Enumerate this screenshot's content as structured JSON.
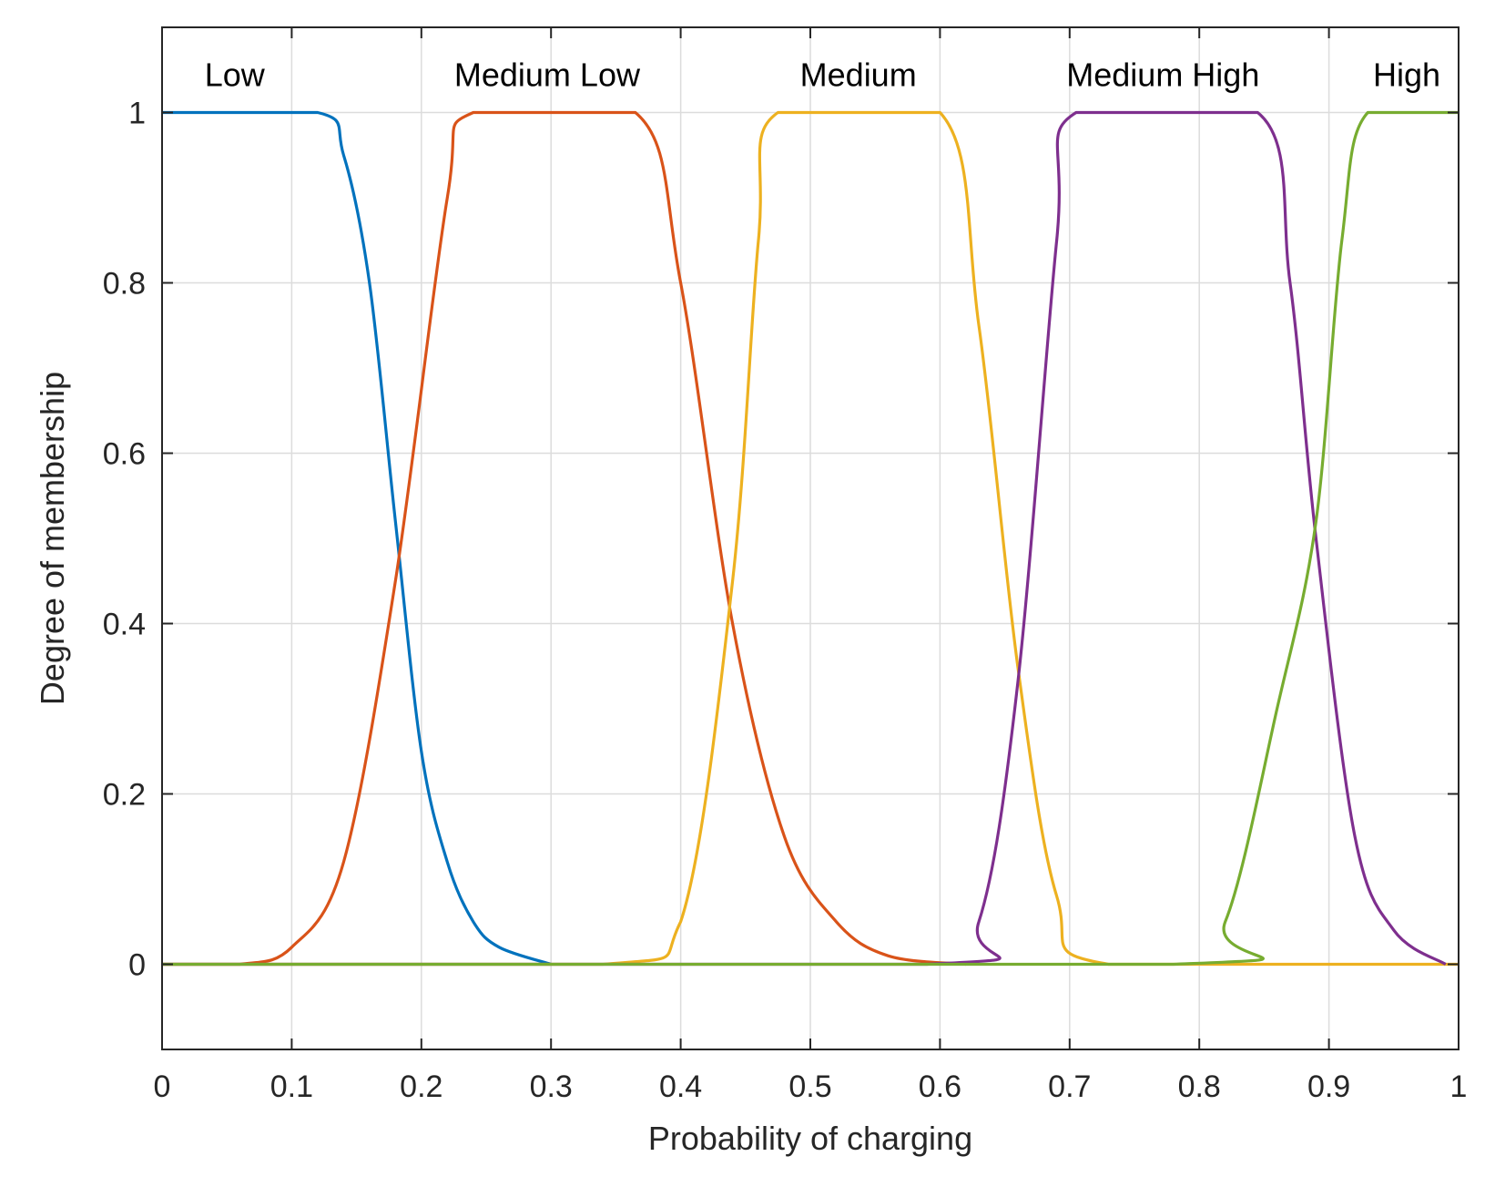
{
  "chart_data": {
    "type": "line",
    "title": "",
    "xlabel": "Probability of charging",
    "ylabel": "Degree of membership",
    "xlim": [
      0,
      1
    ],
    "ylim": [
      -0.1,
      1.1
    ],
    "xticks": [
      0,
      0.1,
      0.2,
      0.3,
      0.4,
      0.5,
      0.6,
      0.7,
      0.8,
      0.9,
      1
    ],
    "xtick_labels": [
      "0",
      "0.1",
      "0.2",
      "0.3",
      "0.4",
      "0.5",
      "0.6",
      "0.7",
      "0.8",
      "0.9",
      "1"
    ],
    "yticks": [
      0,
      0.2,
      0.4,
      0.6,
      0.8,
      1
    ],
    "ytick_labels": [
      "0",
      "0.2",
      "0.4",
      "0.6",
      "0.8",
      "1"
    ],
    "grid": true,
    "series": [
      {
        "name": "Low",
        "color": "#0072BD",
        "shape": "left-shoulder",
        "plateau_end": 0.12,
        "zero_at": 0.3,
        "points": [
          [
            0,
            1
          ],
          [
            0.12,
            1
          ],
          [
            0.14,
            0.95
          ],
          [
            0.16,
            0.8
          ],
          [
            0.18,
            0.52
          ],
          [
            0.2,
            0.25
          ],
          [
            0.22,
            0.12
          ],
          [
            0.24,
            0.05
          ],
          [
            0.26,
            0.02
          ],
          [
            0.3,
            0
          ]
        ]
      },
      {
        "name": "Medium Low",
        "color": "#D95319",
        "shape": "trapezoid",
        "zero_start": 0.06,
        "plateau": [
          0.24,
          0.365
        ],
        "zero_end": 0.62,
        "points": [
          [
            0,
            0
          ],
          [
            0.06,
            0
          ],
          [
            0.1,
            0.02
          ],
          [
            0.14,
            0.12
          ],
          [
            0.18,
            0.45
          ],
          [
            0.22,
            0.9
          ],
          [
            0.24,
            1
          ],
          [
            0.365,
            1
          ],
          [
            0.4,
            0.8
          ],
          [
            0.44,
            0.4
          ],
          [
            0.48,
            0.15
          ],
          [
            0.52,
            0.05
          ],
          [
            0.56,
            0.01
          ],
          [
            0.62,
            0
          ]
        ]
      },
      {
        "name": "Medium",
        "color": "#EDB120",
        "shape": "trapezoid",
        "zero_start": 0.34,
        "plateau": [
          0.475,
          0.6
        ],
        "zero_end": 0.73,
        "points": [
          [
            0,
            0
          ],
          [
            0.34,
            0
          ],
          [
            0.4,
            0.05
          ],
          [
            0.44,
            0.45
          ],
          [
            0.46,
            0.85
          ],
          [
            0.475,
            1
          ],
          [
            0.6,
            1
          ],
          [
            0.63,
            0.75
          ],
          [
            0.66,
            0.35
          ],
          [
            0.69,
            0.08
          ],
          [
            0.73,
            0
          ],
          [
            1,
            0
          ]
        ]
      },
      {
        "name": "Medium High",
        "color": "#7E2F8E",
        "shape": "trapezoid",
        "zero_start": 0.59,
        "plateau": [
          0.705,
          0.845
        ],
        "zero_end": 0.99,
        "points": [
          [
            0,
            0
          ],
          [
            0.59,
            0
          ],
          [
            0.63,
            0.05
          ],
          [
            0.66,
            0.33
          ],
          [
            0.69,
            0.85
          ],
          [
            0.705,
            1
          ],
          [
            0.845,
            1
          ],
          [
            0.87,
            0.8
          ],
          [
            0.89,
            0.5
          ],
          [
            0.92,
            0.15
          ],
          [
            0.95,
            0.04
          ],
          [
            0.99,
            0
          ]
        ]
      },
      {
        "name": "High",
        "color": "#77AC30",
        "shape": "right-shoulder",
        "zero_start": 0.78,
        "plateau_start": 0.93,
        "points": [
          [
            0,
            0
          ],
          [
            0.78,
            0
          ],
          [
            0.82,
            0.05
          ],
          [
            0.86,
            0.3
          ],
          [
            0.89,
            0.52
          ],
          [
            0.91,
            0.85
          ],
          [
            0.93,
            1
          ],
          [
            1,
            1
          ]
        ]
      }
    ],
    "annotations": [
      {
        "text": "Low",
        "x": 0.056
      },
      {
        "text": "Medium Low",
        "x": 0.297
      },
      {
        "text": "Medium",
        "x": 0.537
      },
      {
        "text": "Medium High",
        "x": 0.772
      },
      {
        "text": "High",
        "x": 0.96
      }
    ]
  }
}
